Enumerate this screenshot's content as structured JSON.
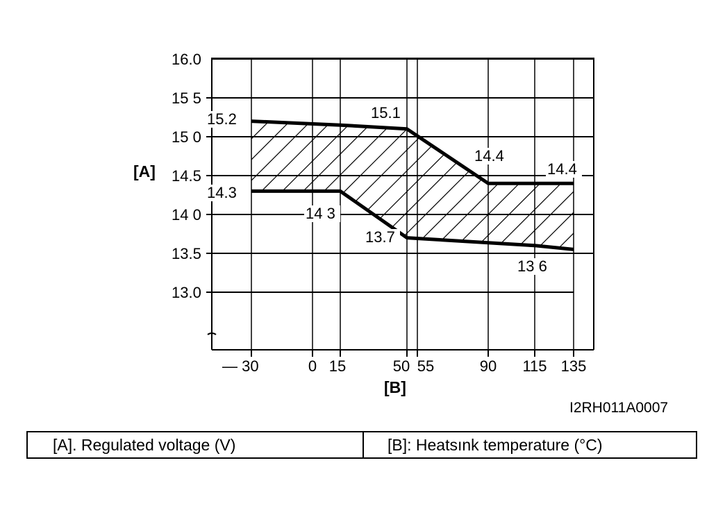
{
  "chart_data": {
    "type": "area",
    "y_axis_letter": "[A]",
    "x_axis_letter": "[B]",
    "x_categories": [
      "— 30",
      "0",
      "15",
      "50",
      "55",
      "90",
      "115",
      "135"
    ],
    "x_positions": [
      -30,
      0,
      15,
      50,
      55,
      90,
      115,
      135
    ],
    "y_ticks": [
      "16.0",
      "15 5",
      "15 0",
      "14.5",
      "14 0",
      "13.5",
      "13.0"
    ],
    "y_tick_values": [
      16.0,
      15.5,
      15.0,
      14.5,
      14.0,
      13.5,
      13.0
    ],
    "series": [
      {
        "name": "",
        "points": [
          {
            "x": -30,
            "y": 15.2
          },
          {
            "x": 15,
            "y": 15.15
          },
          {
            "x": 50,
            "y": 15.1
          },
          {
            "x": 90,
            "y": 14.4
          },
          {
            "x": 135,
            "y": 14.4
          }
        ]
      },
      {
        "name": "",
        "points": [
          {
            "x": -30,
            "y": 14.3
          },
          {
            "x": 15,
            "y": 14.3
          },
          {
            "x": 50,
            "y": 13.7
          },
          {
            "x": 115,
            "y": 13.6
          },
          {
            "x": 135,
            "y": 13.55
          }
        ]
      }
    ],
    "annotations": [
      {
        "text": "15.2",
        "x": -30,
        "y": 15.2
      },
      {
        "text": "15.1",
        "x": 50,
        "y": 15.1
      },
      {
        "text": "14.4",
        "x": 90,
        "y": 14.4
      },
      {
        "text": "14.4",
        "x": 135,
        "y": 14.4
      },
      {
        "text": "14.3",
        "x": -30,
        "y": 14.3
      },
      {
        "text": "14 3",
        "x": 15,
        "y": 14.3
      },
      {
        "text": "13.7",
        "x": 50,
        "y": 13.7
      },
      {
        "text": "13 6",
        "x": 115,
        "y": 13.6
      }
    ],
    "hatched_region": "between series",
    "grid": true
  },
  "figure_code": "I2RH011A0007",
  "legend_table": {
    "a": "[A].   Regulated voltage (V)",
    "b": "[B]:   Heatsınk temperature (°C)"
  }
}
